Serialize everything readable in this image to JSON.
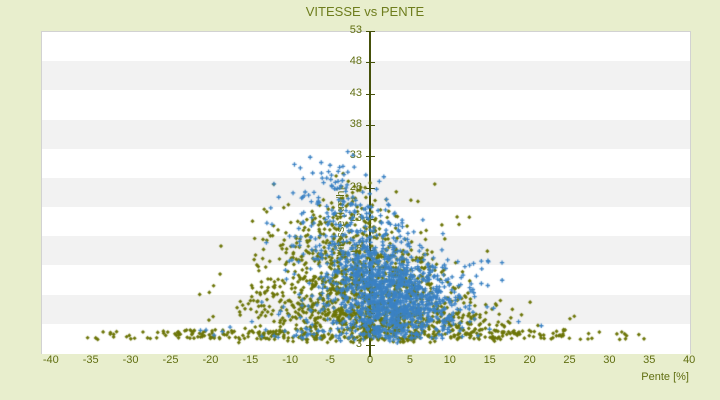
{
  "page": {
    "background_color": "#e8eecd"
  },
  "chart_data": {
    "type": "scatter",
    "title": "VITESSE vs PENTE",
    "xlabel": "Pente [%]",
    "ylabel": "Vitesse [km/h]",
    "xlim": [
      -40,
      40
    ],
    "ylim": [
      3,
      53
    ],
    "x_ticks": [
      -40,
      -35,
      -30,
      -25,
      -20,
      -15,
      -10,
      -5,
      0,
      5,
      10,
      15,
      20,
      25,
      30,
      35,
      40
    ],
    "y_ticks": [
      3,
      8,
      13,
      18,
      23,
      28,
      33,
      38,
      43,
      48,
      53
    ],
    "grid": {
      "stripe_colors": [
        "#ffffff",
        "#f2f2f2"
      ],
      "stripe_count": 11,
      "legend": "none"
    },
    "colors": {
      "axis_line": "#45500a",
      "tick_text": "#616f12",
      "title_text": "#6e7d1d",
      "plot_border": "#d2d2d2",
      "page_background": "#e8eecd"
    },
    "seed": 1337,
    "series": [
      {
        "name": "series-olive",
        "marker": "diamond",
        "color": "#6c7507",
        "clusters": [
          {
            "type": "gauss",
            "cx": 1,
            "cy": 10.5,
            "sx": 4.2,
            "sy": 4,
            "n": 520
          },
          {
            "type": "gauss",
            "cx": -3,
            "cy": 13,
            "sx": 6.5,
            "sy": 5,
            "n": 330
          },
          {
            "type": "gauss",
            "cx": -9,
            "cy": 8.5,
            "sx": 5,
            "sy": 3,
            "n": 160
          },
          {
            "type": "gauss",
            "cx": -4,
            "cy": 20,
            "sx": 5,
            "sy": 3.5,
            "n": 150
          },
          {
            "type": "gauss",
            "cx": 2,
            "cy": 6.5,
            "sx": 6,
            "sy": 1.8,
            "n": 220
          },
          {
            "type": "gauss",
            "cx": 8,
            "cy": 7.5,
            "sx": 4.5,
            "sy": 2.5,
            "n": 130
          },
          {
            "type": "gauss",
            "cx": 14,
            "cy": 6,
            "sx": 6,
            "sy": 1.5,
            "n": 50
          },
          {
            "type": "gauss",
            "cx": -2,
            "cy": 25,
            "sx": 4,
            "sy": 2.5,
            "n": 40
          },
          {
            "type": "strip",
            "x0": -37,
            "x1": 34,
            "y0": 3.8,
            "y1": 5.4,
            "bias": 2,
            "n": 200
          },
          {
            "type": "strip",
            "x0": -37,
            "x1": 35,
            "y0": 3.8,
            "y1": 5.2,
            "bias": 1,
            "n": 80
          }
        ]
      },
      {
        "name": "series-blue",
        "marker": "plus",
        "color": "#3b82c4",
        "clusters": [
          {
            "type": "gauss",
            "cx": 2,
            "cy": 11.5,
            "sx": 3.2,
            "sy": 3.8,
            "n": 650
          },
          {
            "type": "gauss",
            "cx": 4.5,
            "cy": 9,
            "sx": 3.5,
            "sy": 2.8,
            "n": 280
          },
          {
            "type": "gauss",
            "cx": -2,
            "cy": 16,
            "sx": 3.5,
            "sy": 4.2,
            "n": 260
          },
          {
            "type": "gauss",
            "cx": -3.5,
            "cy": 24,
            "sx": 3.8,
            "sy": 3.2,
            "n": 110
          },
          {
            "type": "gauss",
            "cx": -4,
            "cy": 29.5,
            "sx": 2.5,
            "sy": 1.8,
            "n": 28
          },
          {
            "type": "gauss",
            "cx": 8,
            "cy": 12,
            "sx": 3.5,
            "sy": 3,
            "n": 120
          },
          {
            "type": "gauss",
            "cx": 0,
            "cy": 7,
            "sx": 10,
            "sy": 2,
            "n": 60
          },
          {
            "type": "strip",
            "x0": -24,
            "x1": 18,
            "y0": 3.9,
            "y1": 5.6,
            "bias": 2,
            "n": 55
          }
        ]
      }
    ]
  }
}
